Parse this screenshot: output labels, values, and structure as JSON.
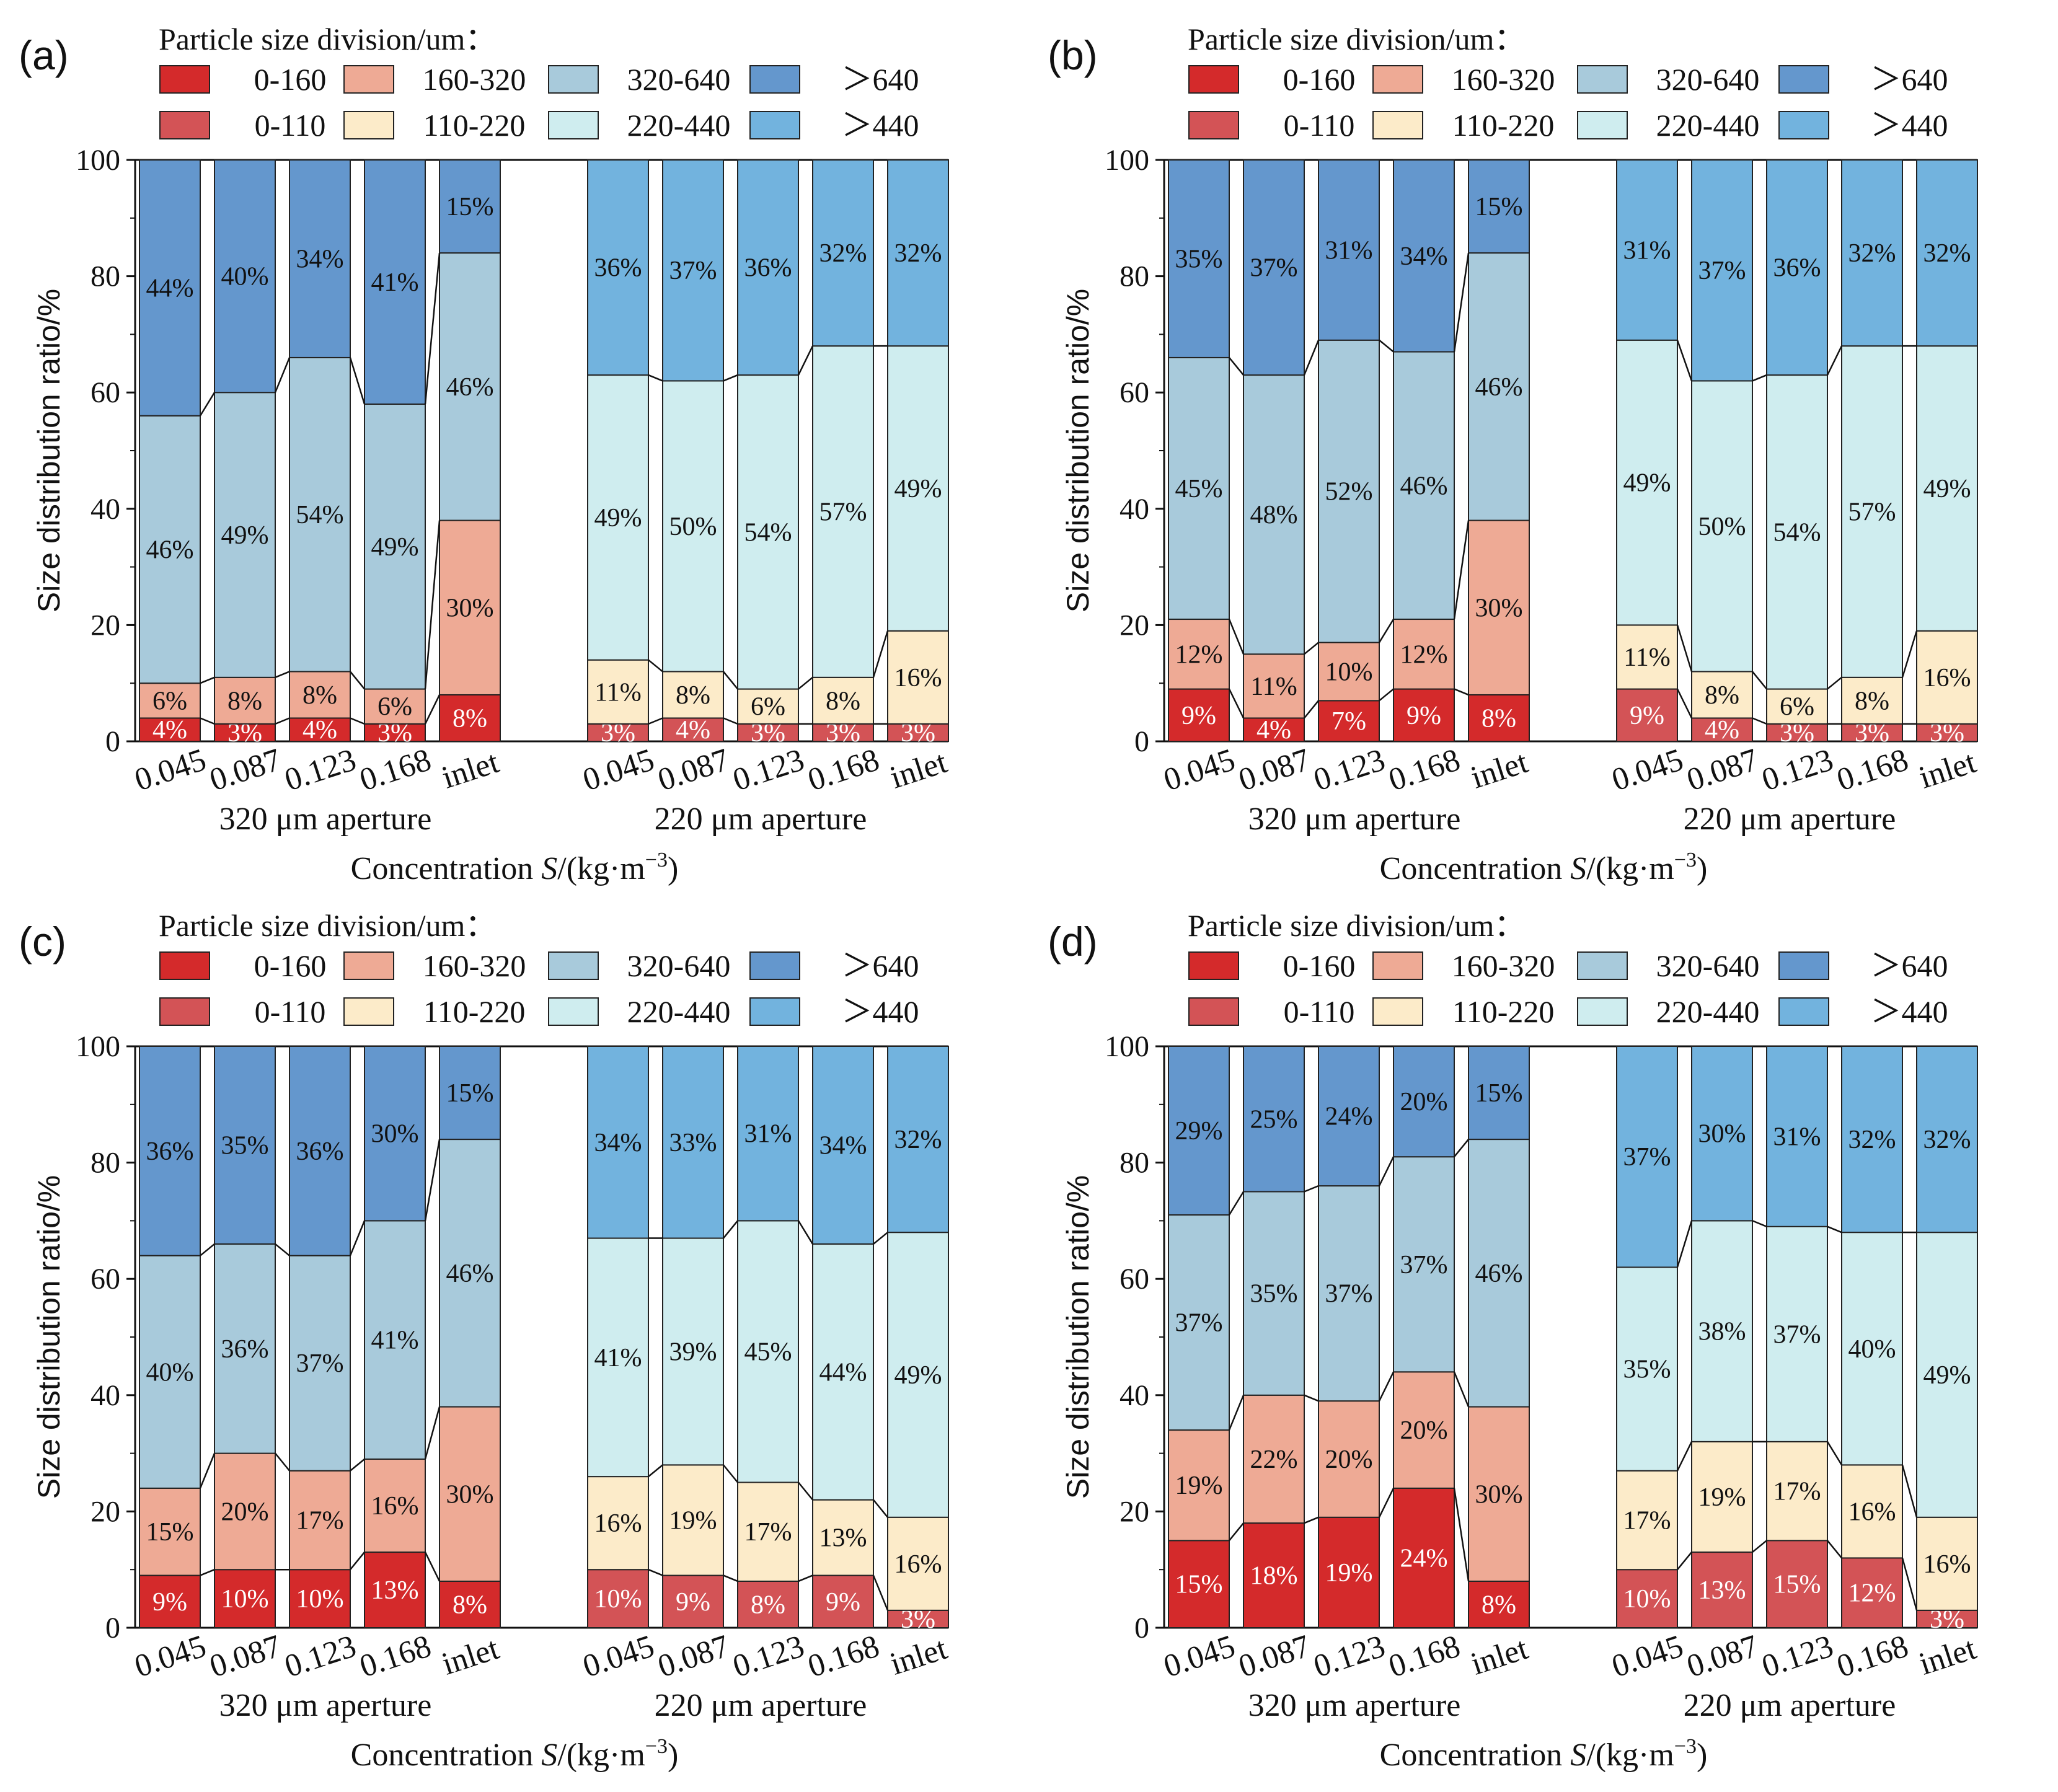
{
  "figure": {
    "legend_title": "Particle size division/um：",
    "legend": [
      {
        "key": "r1",
        "label": "0-160",
        "color": "#d42a2b"
      },
      {
        "key": "r2",
        "label": "160-320",
        "color": "#eeaa95"
      },
      {
        "key": "r3",
        "label": "320-640",
        "color": "#a8cadb"
      },
      {
        "key": "r4",
        "label": "＞640",
        "color": "#6497cd"
      },
      {
        "key": "g1",
        "label": "0-110",
        "color": "#d35356"
      },
      {
        "key": "g2",
        "label": "110-220",
        "color": "#fcebc9"
      },
      {
        "key": "g3",
        "label": "220-440",
        "color": "#cfedef"
      },
      {
        "key": "g4",
        "label": "＞440",
        "color": "#72b3de"
      }
    ],
    "y_axis_label": "Size distribution ratio/%",
    "x_axis_title": "Concentration S/(kg·m⁻³)",
    "x_axis_title_parts": {
      "pre": "Concentration ",
      "italic": "S",
      "post": "/(kg·m",
      "sup": "−3",
      "close": ")"
    },
    "y_ticks": [
      "0",
      "20",
      "40",
      "60",
      "80",
      "100"
    ],
    "group_labels": [
      "320 μm aperture",
      "220 μm aperture"
    ],
    "x_categories": [
      "0.045",
      "0.087",
      "0.123",
      "0.168",
      "inlet"
    ]
  },
  "chart_data": [
    {
      "panel": "(a)",
      "type": "bar",
      "stacked": true,
      "ylim": [
        0,
        100
      ],
      "groups": [
        {
          "name": "320 μm aperture",
          "series_keys": [
            "r1",
            "r2",
            "r3",
            "r4"
          ],
          "categories": [
            "0.045",
            "0.087",
            "0.123",
            "0.168",
            "inlet"
          ],
          "values": [
            [
              4,
              6,
              46,
              44
            ],
            [
              3,
              8,
              49,
              40
            ],
            [
              4,
              8,
              54,
              34
            ],
            [
              3,
              6,
              49,
              41
            ],
            [
              8,
              30,
              46,
              15
            ]
          ],
          "labels": [
            [
              "4%",
              "6%",
              "46%",
              "44%"
            ],
            [
              "3%",
              "8%",
              "49%",
              "40%"
            ],
            [
              "4%",
              "8%",
              "54%",
              "34%"
            ],
            [
              "3%",
              "6%",
              "49%",
              "41%"
            ],
            [
              "8%",
              "30%",
              "46%",
              "15%"
            ]
          ]
        },
        {
          "name": "220 μm aperture",
          "series_keys": [
            "g1",
            "g2",
            "g3",
            "g4"
          ],
          "categories": [
            "0.045",
            "0.087",
            "0.123",
            "0.168",
            "inlet"
          ],
          "values": [
            [
              3,
              11,
              49,
              36
            ],
            [
              4,
              8,
              50,
              37
            ],
            [
              3,
              6,
              54,
              36
            ],
            [
              3,
              8,
              57,
              32
            ],
            [
              3,
              16,
              49,
              32
            ]
          ],
          "labels": [
            [
              "3%",
              "11%",
              "49%",
              "36%"
            ],
            [
              "4%",
              "8%",
              "50%",
              "37%"
            ],
            [
              "3%",
              "6%",
              "54%",
              "36%"
            ],
            [
              "3%",
              "8%",
              "57%",
              "32%"
            ],
            [
              "3%",
              "16%",
              "49%",
              "32%"
            ]
          ]
        }
      ]
    },
    {
      "panel": "(b)",
      "type": "bar",
      "stacked": true,
      "ylim": [
        0,
        100
      ],
      "groups": [
        {
          "name": "320 μm aperture",
          "series_keys": [
            "r1",
            "r2",
            "r3",
            "r4"
          ],
          "categories": [
            "0.045",
            "0.087",
            "0.123",
            "0.168",
            "inlet"
          ],
          "values": [
            [
              9,
              12,
              45,
              35
            ],
            [
              4,
              11,
              48,
              37
            ],
            [
              7,
              10,
              52,
              31
            ],
            [
              9,
              12,
              46,
              34
            ],
            [
              8,
              30,
              46,
              15
            ]
          ],
          "labels": [
            [
              "9%",
              "12%",
              "45%",
              "35%"
            ],
            [
              "4%",
              "11%",
              "48%",
              "37%"
            ],
            [
              "7%",
              "10%",
              "52%",
              "31%"
            ],
            [
              "9%",
              "12%",
              "46%",
              "34%"
            ],
            [
              "8%",
              "30%",
              "46%",
              "15%"
            ]
          ]
        },
        {
          "name": "220 μm aperture",
          "series_keys": [
            "g1",
            "g2",
            "g3",
            "g4"
          ],
          "categories": [
            "0.045",
            "0.087",
            "0.123",
            "0.168",
            "inlet"
          ],
          "values": [
            [
              9,
              11,
              49,
              31
            ],
            [
              4,
              8,
              50,
              37
            ],
            [
              3,
              6,
              54,
              36
            ],
            [
              3,
              8,
              57,
              32
            ],
            [
              3,
              16,
              49,
              32
            ]
          ],
          "labels": [
            [
              "9%",
              "11%",
              "49%",
              "31%"
            ],
            [
              "4%",
              "8%",
              "50%",
              "37%"
            ],
            [
              "3%",
              "6%",
              "54%",
              "36%"
            ],
            [
              "3%",
              "8%",
              "57%",
              "32%"
            ],
            [
              "3%",
              "16%",
              "49%",
              "32%"
            ]
          ]
        }
      ]
    },
    {
      "panel": "(c)",
      "type": "bar",
      "stacked": true,
      "ylim": [
        0,
        100
      ],
      "groups": [
        {
          "name": "320 μm aperture",
          "series_keys": [
            "r1",
            "r2",
            "r3",
            "r4"
          ],
          "categories": [
            "0.045",
            "0.087",
            "0.123",
            "0.168",
            "inlet"
          ],
          "values": [
            [
              9,
              15,
              40,
              36
            ],
            [
              10,
              20,
              36,
              35
            ],
            [
              10,
              17,
              37,
              36
            ],
            [
              13,
              16,
              41,
              30
            ],
            [
              8,
              30,
              46,
              15
            ]
          ],
          "labels": [
            [
              "9%",
              "15%",
              "40%",
              "36%"
            ],
            [
              "10%",
              "20%",
              "36%",
              "35%"
            ],
            [
              "10%",
              "17%",
              "37%",
              "36%"
            ],
            [
              "13%",
              "16%",
              "41%",
              "30%"
            ],
            [
              "8%",
              "30%",
              "46%",
              "15%"
            ]
          ]
        },
        {
          "name": "220 μm aperture",
          "series_keys": [
            "g1",
            "g2",
            "g3",
            "g4"
          ],
          "categories": [
            "0.045",
            "0.087",
            "0.123",
            "0.168",
            "inlet"
          ],
          "values": [
            [
              10,
              16,
              41,
              34
            ],
            [
              9,
              19,
              39,
              33
            ],
            [
              8,
              17,
              45,
              31
            ],
            [
              9,
              13,
              44,
              34
            ],
            [
              3,
              16,
              49,
              32
            ]
          ],
          "labels": [
            [
              "10%",
              "16%",
              "41%",
              "34%"
            ],
            [
              "9%",
              "19%",
              "39%",
              "33%"
            ],
            [
              "8%",
              "17%",
              "45%",
              "31%"
            ],
            [
              "9%",
              "13%",
              "44%",
              "34%"
            ],
            [
              "3%",
              "16%",
              "49%",
              "32%"
            ]
          ]
        }
      ]
    },
    {
      "panel": "(d)",
      "type": "bar",
      "stacked": true,
      "ylim": [
        0,
        100
      ],
      "groups": [
        {
          "name": "320 μm aperture",
          "series_keys": [
            "r1",
            "r2",
            "r3",
            "r4"
          ],
          "categories": [
            "0.045",
            "0.087",
            "0.123",
            "0.168",
            "inlet"
          ],
          "values": [
            [
              15,
              19,
              37,
              29
            ],
            [
              18,
              22,
              35,
              25
            ],
            [
              19,
              20,
              37,
              24
            ],
            [
              24,
              20,
              37,
              20
            ],
            [
              8,
              30,
              46,
              15
            ]
          ],
          "labels": [
            [
              "15%",
              "19%",
              "37%",
              "29%"
            ],
            [
              "18%",
              "22%",
              "35%",
              "25%"
            ],
            [
              "19%",
              "20%",
              "37%",
              "24%"
            ],
            [
              "24%",
              "20%",
              "37%",
              "20%"
            ],
            [
              "8%",
              "30%",
              "46%",
              "15%"
            ]
          ]
        },
        {
          "name": "220 μm aperture",
          "series_keys": [
            "g1",
            "g2",
            "g3",
            "g4"
          ],
          "categories": [
            "0.045",
            "0.087",
            "0.123",
            "0.168",
            "inlet"
          ],
          "values": [
            [
              10,
              17,
              35,
              37
            ],
            [
              13,
              19,
              38,
              30
            ],
            [
              15,
              17,
              37,
              31
            ],
            [
              12,
              16,
              40,
              32
            ],
            [
              3,
              16,
              49,
              32
            ]
          ],
          "labels": [
            [
              "10%",
              "17%",
              "35%",
              "37%"
            ],
            [
              "13%",
              "19%",
              "38%",
              "30%"
            ],
            [
              "15%",
              "17%",
              "37%",
              "31%"
            ],
            [
              "12%",
              "16%",
              "40%",
              "32%"
            ],
            [
              "3%",
              "16%",
              "49%",
              "32%"
            ]
          ]
        }
      ]
    }
  ]
}
